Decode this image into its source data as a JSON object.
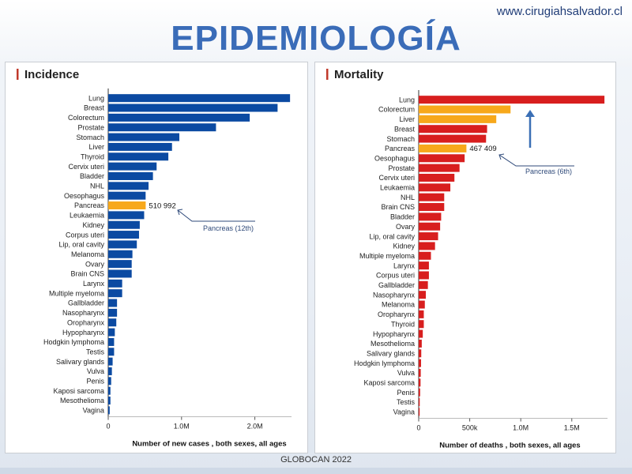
{
  "header": {
    "url": "www.cirugiahsalvador.cl",
    "title": "EPIDEMIOLOGÍA"
  },
  "footer": {
    "source": "GLOBOCAN 2022"
  },
  "colors": {
    "blue": "#0b4aa2",
    "orange": "#f7a81b",
    "red": "#d81e1e",
    "annotation": "#2f4a7a"
  },
  "chart_data": [
    {
      "type": "bar",
      "orientation": "horizontal",
      "title": "Incidence",
      "xlabel": "Number of new cases , both sexes, all ages",
      "xlim": [
        0,
        2500000
      ],
      "xticks": [
        0,
        1000000,
        2000000
      ],
      "xtick_labels": [
        "0",
        "1.0M",
        "2.0M"
      ],
      "categories": [
        "Lung",
        "Breast",
        "Colorectum",
        "Prostate",
        "Stomach",
        "Liver",
        "Thyroid",
        "Cervix uteri",
        "Bladder",
        "NHL",
        "Oesophagus",
        "Pancreas",
        "Leukaemia",
        "Kidney",
        "Corpus uteri",
        "Lip, oral cavity",
        "Melanoma",
        "Ovary",
        "Brain CNS",
        "Larynx",
        "Multiple myeloma",
        "Gallbladder",
        "Nasopharynx",
        "Oropharynx",
        "Hypopharynx",
        "Hodgkin lymphoma",
        "Testis",
        "Salivary glands",
        "Vulva",
        "Penis",
        "Kaposi sarcoma",
        "Mesothelioma",
        "Vagina"
      ],
      "values": [
        2480000,
        2310000,
        1930000,
        1470000,
        970000,
        870000,
        820000,
        660000,
        610000,
        550000,
        510000,
        510992,
        490000,
        430000,
        420000,
        390000,
        330000,
        320000,
        320000,
        190000,
        190000,
        120000,
        120000,
        110000,
        90000,
        80000,
        80000,
        60000,
        50000,
        40000,
        30000,
        30000,
        20000
      ],
      "highlight_index": 11,
      "highlight_label": "510 992",
      "annotation": "Pancreas (12th)",
      "bar_color": "#0b4aa2",
      "highlight_color": "#f7a81b",
      "grid": false
    },
    {
      "type": "bar",
      "orientation": "horizontal",
      "title": "Mortality",
      "xlabel": "Number of deaths , both sexes, all ages",
      "xlim": [
        0,
        1850000
      ],
      "xticks": [
        0,
        500000,
        1000000,
        1500000
      ],
      "xtick_labels": [
        "0",
        "500k",
        "1.0M",
        "1.5M"
      ],
      "categories": [
        "Lung",
        "Colorectum",
        "Liver",
        "Breast",
        "Stomach",
        "Pancreas",
        "Oesophagus",
        "Prostate",
        "Cervix uteri",
        "Leukaemia",
        "NHL",
        "Brain CNS",
        "Bladder",
        "Ovary",
        "Lip, oral cavity",
        "Kidney",
        "Multiple myeloma",
        "Larynx",
        "Corpus uteri",
        "Gallbladder",
        "Nasopharynx",
        "Melanoma",
        "Oropharynx",
        "Thyroid",
        "Hypopharynx",
        "Mesothelioma",
        "Salivary glands",
        "Hodgkin lymphoma",
        "Vulva",
        "Kaposi sarcoma",
        "Penis",
        "Testis",
        "Vagina"
      ],
      "values": [
        1820000,
        900000,
        760000,
        670000,
        660000,
        467409,
        450000,
        400000,
        350000,
        310000,
        250000,
        250000,
        220000,
        210000,
        190000,
        160000,
        120000,
        100000,
        100000,
        90000,
        70000,
        60000,
        50000,
        50000,
        40000,
        30000,
        25000,
        23000,
        20000,
        18000,
        14000,
        10000,
        8000
      ],
      "red_indices": [
        0,
        3,
        4,
        6,
        7,
        8,
        9,
        10,
        11,
        12,
        13,
        14,
        15,
        16,
        17,
        18,
        19,
        20,
        21,
        22,
        23,
        24,
        25,
        26,
        27,
        28,
        29,
        30,
        31,
        32
      ],
      "orange_indices": [
        1,
        2,
        5
      ],
      "highlight_index": 5,
      "highlight_label": "467 409",
      "annotation": "Pancreas (6th)",
      "grid": false
    }
  ]
}
